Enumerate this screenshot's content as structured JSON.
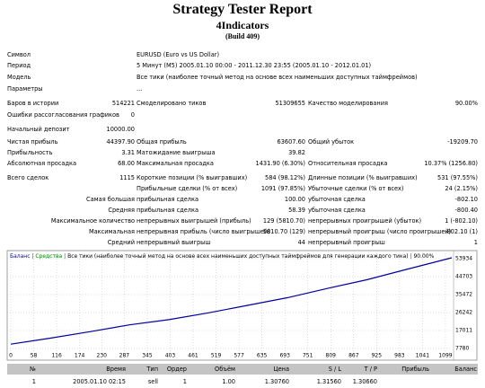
{
  "header": {
    "title": "Strategy Tester Report",
    "subtitle": "4Indicators",
    "build": "(Build 409)"
  },
  "info": [
    [
      "Символ",
      "EURUSD (Euro vs US Dollar)"
    ],
    [
      "Период",
      "5 Минут (M5) 2005.01.10 00:00 - 2011.12.30 23:55 (2005.01.10 - 2012.01.01)"
    ],
    [
      "Модель",
      "Все тики (наиболее точный метод на основе всех наименьших доступных таймфреймов)"
    ],
    [
      "Параметры",
      "..."
    ]
  ],
  "stats": [
    {
      "l1": "Баров в истории",
      "v1": "514221",
      "l2": "Смоделировано тиков",
      "v2": "51309655",
      "l3": "Качество моделирования",
      "v3": "90.00%"
    },
    {
      "l1": "Ошибки рассогласования графиков",
      "v1": "0"
    },
    {
      "l1": "Начальный депозит",
      "v1": "10000.00"
    },
    {
      "l1": "Чистая прибыль",
      "v1": "44397.90",
      "l2": "Общая прибыль",
      "v2": "63607.60",
      "l3": "Общий убыток",
      "v3": "-19209.70"
    },
    {
      "l1": "Прибыльность",
      "v1": "3.31",
      "l2": "Матожидание выигрыша",
      "v2": "39.82"
    },
    {
      "l1": "Абсолютная просадка",
      "v1": "68.00",
      "l2": "Максимальная просадка",
      "v2": "1431.90 (6.30%)",
      "l3": "Относительная просадка",
      "v3": "10.37% (1256.80)"
    },
    {
      "l1": "Всего сделок",
      "v1": "1115",
      "l2": "Короткие позиции (% выигравших)",
      "v2": "584 (98.12%)",
      "l3": "Длинные позиции (% выигравших)",
      "v3": "531 (97.55%)"
    },
    {
      "l2": "Прибыльные сделки (% от всех)",
      "v2": "1091 (97.85%)",
      "l3": "Убыточные сделки (% от всех)",
      "v3": "24 (2.15%)"
    },
    {
      "p": "Самая большая",
      "l2": "прибыльная сделка",
      "v2": "100.00",
      "l3": "убыточная сделка",
      "v3": "-802.10"
    },
    {
      "p": "Средняя",
      "l2": "прибыльная сделка",
      "v2": "58.39",
      "l3": "убыточная сделка",
      "v3": "-800.40"
    },
    {
      "p": "Максимальное количество",
      "l2": "непрерывных выигрышей (прибыль)",
      "v2": "129 (5810.70)",
      "l3": "непрерывных проигрышей (убыток)",
      "v3": "1 (-802.10)"
    },
    {
      "p": "Максимальная",
      "l2": "непрерывная прибыль (число выигрышей)",
      "v2": "5810.70 (129)",
      "l3": "непрерывный проигрыш (число проигрышей)",
      "v3": "-802.10 (1)"
    },
    {
      "p": "Средний",
      "l2": "непрерывный выигрыш",
      "v2": "44",
      "l3": "непрерывный проигрыш",
      "v3": "1"
    }
  ],
  "chart": {
    "type": "line",
    "legend_extra": {
      "text": "Средства",
      "color": "#008000"
    },
    "legend_note": "Все тики (наиболее точный метод на основе всех наименьших доступных таймфреймов для генерации каждого тика)",
    "legend_quality": "90.00%",
    "x": [
      0,
      100,
      200,
      300,
      400,
      500,
      600,
      700,
      800,
      900,
      1000,
      1115
    ],
    "series": [
      {
        "name": "Баланс",
        "color": "#0000a0",
        "values": [
          10000,
          13100,
          16400,
          19900,
          22600,
          26100,
          30000,
          33900,
          38600,
          43100,
          48400,
          54397.9
        ]
      }
    ],
    "xlim": [
      0,
      1115
    ],
    "ylim": [
      6857,
      56242
    ],
    "xticks": [
      0,
      58,
      116,
      174,
      230,
      287,
      345,
      403,
      461,
      519,
      577,
      635,
      693,
      751,
      809,
      867,
      925,
      983,
      1041,
      1099
    ],
    "yticks": [
      7780,
      17011,
      26242,
      35472,
      44703,
      53934
    ],
    "grid": true
  },
  "table": {
    "columns": [
      "№",
      "Время",
      "Тип",
      "Ордер",
      "Объём",
      "Цена",
      "S / L",
      "T / P",
      "Прибыль",
      "Баланс"
    ],
    "rows": [
      [
        "1",
        "2005.01.10 02:15",
        "sell",
        "1",
        "1.00",
        "1.30760",
        "1.31560",
        "1.30660"
      ]
    ]
  }
}
